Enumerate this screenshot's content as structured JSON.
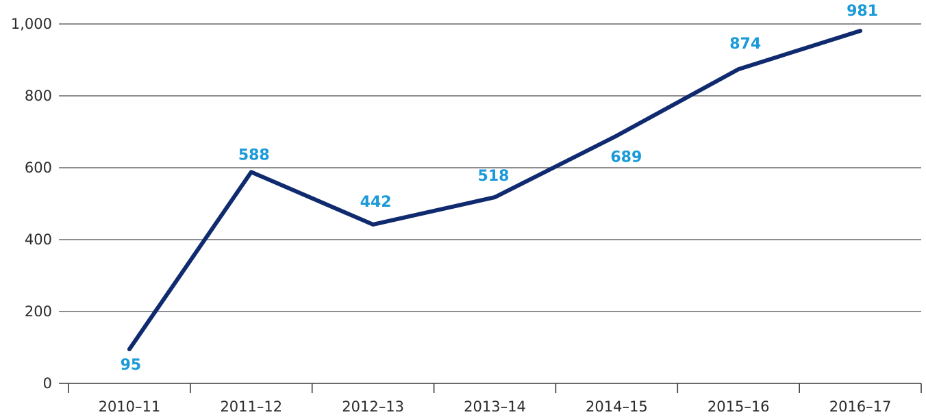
{
  "colors": {
    "line": "#0f2a6e",
    "label": "#1a9ad8",
    "grid": "#4a4a4a",
    "text": "#2b2b2b"
  },
  "chart_data": {
    "type": "line",
    "title": "",
    "xlabel": "",
    "ylabel": "",
    "categories": [
      "2010–11",
      "2011–12",
      "2012–13",
      "2013–14",
      "2014–15",
      "2015–16",
      "2016–17"
    ],
    "series": [
      {
        "values": [
          95,
          588,
          442,
          518,
          689,
          874,
          981
        ]
      }
    ],
    "data_labels": [
      "95",
      "588",
      "442",
      "518",
      "689",
      "874",
      "981"
    ],
    "ylim": [
      0,
      1000
    ],
    "yticks": [
      0,
      200,
      400,
      600,
      800,
      1000
    ],
    "ytick_labels": [
      "0",
      "200",
      "400",
      "600",
      "800",
      "1,000"
    ],
    "grid": true,
    "legend": false
  }
}
